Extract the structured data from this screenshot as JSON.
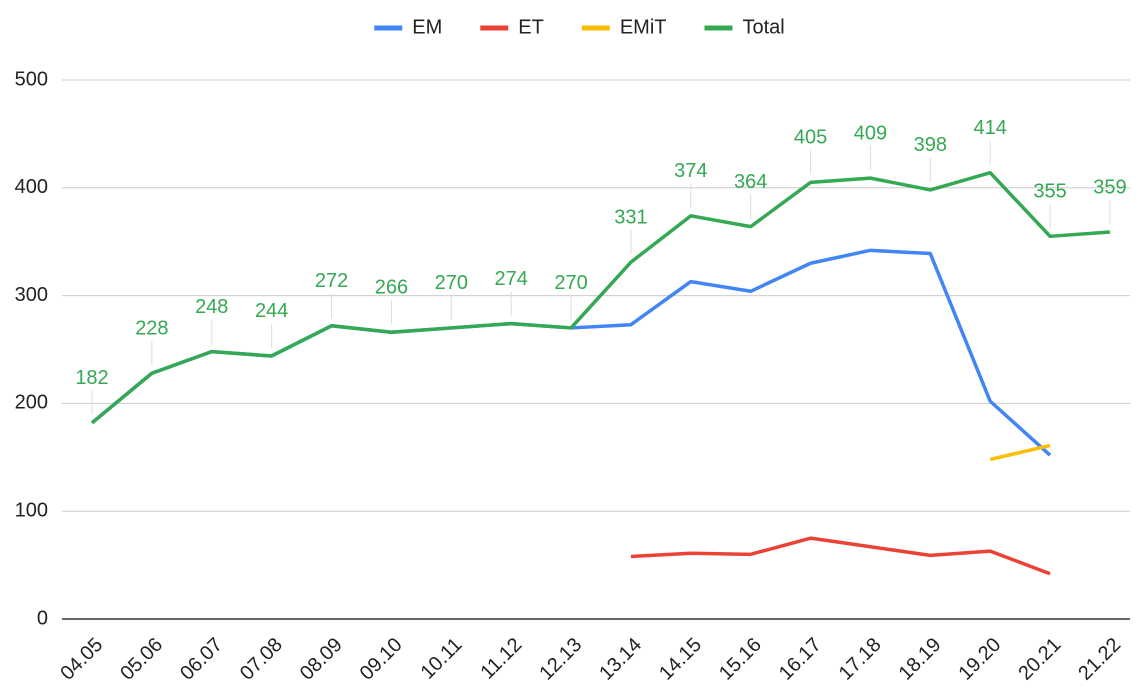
{
  "chart_data": {
    "type": "line",
    "categories": [
      "04.05",
      "05.06",
      "06.07",
      "07.08",
      "08.09",
      "09.10",
      "10.11",
      "11.12",
      "12.13",
      "13.14",
      "14.15",
      "15.16",
      "16.17",
      "17.18",
      "18.19",
      "19.20",
      "20.21",
      "21.22"
    ],
    "series": [
      {
        "name": "EM",
        "color": "#4285f4",
        "values": [
          182,
          228,
          248,
          244,
          272,
          266,
          270,
          274,
          270,
          273,
          313,
          304,
          330,
          342,
          339,
          202,
          152,
          null
        ]
      },
      {
        "name": "ET",
        "color": "#ea4335",
        "values": [
          null,
          null,
          null,
          null,
          null,
          null,
          null,
          null,
          null,
          58,
          61,
          60,
          75,
          67,
          59,
          63,
          42,
          null
        ]
      },
      {
        "name": "EMiT",
        "color": "#fbbc04",
        "values": [
          null,
          null,
          null,
          null,
          null,
          null,
          null,
          null,
          null,
          null,
          null,
          null,
          null,
          null,
          null,
          148,
          161,
          null
        ]
      },
      {
        "name": "Total",
        "color": "#34a853",
        "values": [
          182,
          228,
          248,
          244,
          272,
          266,
          270,
          274,
          270,
          331,
          374,
          364,
          405,
          409,
          398,
          414,
          355,
          359
        ],
        "data_labels": true
      }
    ],
    "ylim": [
      0,
      500
    ],
    "yticks": [
      0,
      100,
      200,
      300,
      400,
      500
    ],
    "grid": true,
    "legend": "top"
  }
}
